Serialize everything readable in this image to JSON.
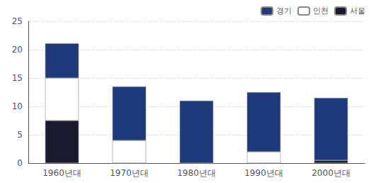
{
  "chart_data": {
    "type": "bar",
    "stacked": true,
    "categories": [
      "1960년대",
      "1970년대",
      "1980년대",
      "1990년대",
      "2000년대"
    ],
    "series": [
      {
        "name": "서울",
        "color": "#1a1a2e",
        "values": [
          7.5,
          0.0,
          0.0,
          0.0,
          0.5
        ]
      },
      {
        "name": "인천",
        "color": "#ffffff",
        "values": [
          7.5,
          4.0,
          0.0,
          2.0,
          0.0
        ]
      },
      {
        "name": "경기",
        "color": "#1f3a7a",
        "values": [
          6.1,
          9.5,
          11.0,
          10.5,
          11.0
        ]
      }
    ],
    "ylim": [
      0,
      25
    ],
    "yticks": [
      0,
      5,
      10,
      15,
      20,
      25
    ],
    "grid": true,
    "legend": "upper right"
  }
}
